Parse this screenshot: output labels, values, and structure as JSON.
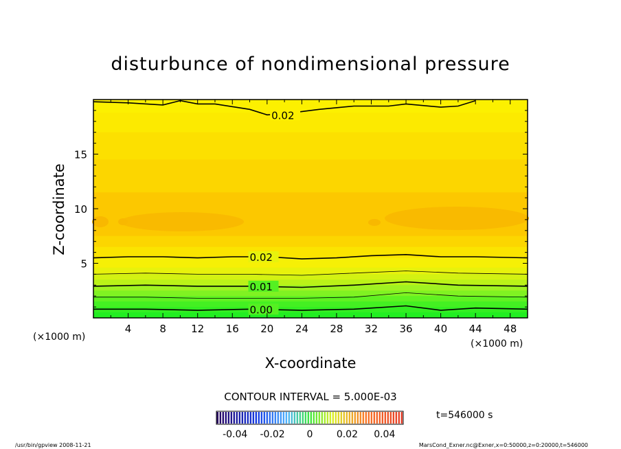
{
  "chart_data": {
    "type": "heatmap",
    "title": "disturbunce of nondimensional pressure",
    "xlabel": "X-coordinate",
    "ylabel": "Z-coordinate",
    "x_unit": "(×1000 m)",
    "y_unit": "(×1000 m)",
    "xlim": [
      0,
      50
    ],
    "ylim": [
      0,
      20
    ],
    "x_ticks": [
      4,
      8,
      12,
      16,
      20,
      24,
      28,
      32,
      36,
      40,
      44,
      48
    ],
    "y_ticks": [
      5,
      10,
      15
    ],
    "contour_interval_text": "CONTOUR INTERVAL = 5.000E-03",
    "time_text": "t=546000 s",
    "colorbar": {
      "range": [
        -0.05,
        0.05
      ],
      "tick_values": [
        -0.04,
        -0.02,
        0,
        0.02,
        0.04
      ],
      "tick_labels": [
        "-0.04",
        "-0.02",
        "0",
        "0.02",
        "0.04"
      ]
    },
    "contours": [
      {
        "label": "0.02",
        "label_x": 20.5,
        "points": [
          [
            0,
            19.8
          ],
          [
            4,
            19.7
          ],
          [
            8,
            19.5
          ],
          [
            10,
            19.9
          ],
          [
            12,
            19.6
          ],
          [
            14,
            19.6
          ],
          [
            18,
            19.1
          ],
          [
            20,
            18.6
          ],
          [
            22,
            18.7
          ],
          [
            26,
            19.1
          ],
          [
            30,
            19.4
          ],
          [
            34,
            19.4
          ],
          [
            36,
            19.6
          ],
          [
            40,
            19.3
          ],
          [
            42,
            19.4
          ],
          [
            44,
            19.9
          ]
        ]
      },
      {
        "label": "0.02",
        "label_x": 18,
        "points": [
          [
            0,
            5.5
          ],
          [
            4,
            5.6
          ],
          [
            8,
            5.6
          ],
          [
            12,
            5.5
          ],
          [
            16,
            5.6
          ],
          [
            20,
            5.6
          ],
          [
            24,
            5.4
          ],
          [
            28,
            5.5
          ],
          [
            32,
            5.7
          ],
          [
            36,
            5.8
          ],
          [
            40,
            5.6
          ],
          [
            44,
            5.6
          ],
          [
            50,
            5.5
          ]
        ]
      },
      {
        "label": "",
        "points": [
          [
            0,
            4.0
          ],
          [
            6,
            4.1
          ],
          [
            12,
            4.0
          ],
          [
            18,
            4.0
          ],
          [
            24,
            3.9
          ],
          [
            30,
            4.1
          ],
          [
            36,
            4.3
          ],
          [
            42,
            4.1
          ],
          [
            50,
            4.0
          ]
        ]
      },
      {
        "label": "0.01",
        "label_x": 18,
        "points": [
          [
            0,
            2.9
          ],
          [
            6,
            3.0
          ],
          [
            12,
            2.9
          ],
          [
            18,
            2.9
          ],
          [
            24,
            2.8
          ],
          [
            30,
            3.0
          ],
          [
            36,
            3.3
          ],
          [
            42,
            3.0
          ],
          [
            50,
            2.9
          ]
        ]
      },
      {
        "label": "",
        "points": [
          [
            0,
            1.9
          ],
          [
            6,
            1.9
          ],
          [
            12,
            1.8
          ],
          [
            18,
            1.8
          ],
          [
            24,
            1.8
          ],
          [
            30,
            1.9
          ],
          [
            36,
            2.3
          ],
          [
            42,
            2.0
          ],
          [
            50,
            1.9
          ]
        ]
      },
      {
        "label": "0.00",
        "label_x": 18,
        "points": [
          [
            0,
            0.8
          ],
          [
            6,
            0.8
          ],
          [
            12,
            0.7
          ],
          [
            18,
            0.8
          ],
          [
            24,
            0.7
          ],
          [
            30,
            0.8
          ],
          [
            36,
            1.1
          ],
          [
            40,
            0.7
          ],
          [
            44,
            0.9
          ],
          [
            50,
            0.8
          ]
        ]
      }
    ],
    "color_bands": [
      {
        "z_max": 0.5,
        "color": "#22ee22"
      },
      {
        "z_max": 1.0,
        "color": "#33ee22"
      },
      {
        "z_max": 1.5,
        "color": "#44f022"
      },
      {
        "z_max": 2.0,
        "color": "#60f222"
      },
      {
        "z_max": 2.5,
        "color": "#80f222"
      },
      {
        "z_max": 3.0,
        "color": "#9ff222"
      },
      {
        "z_max": 3.5,
        "color": "#bbf218"
      },
      {
        "z_max": 4.0,
        "color": "#d3f212"
      },
      {
        "z_max": 4.6,
        "color": "#e8f20c"
      },
      {
        "z_max": 5.5,
        "color": "#f6f006"
      },
      {
        "z_max": 6.5,
        "color": "#fbe400"
      },
      {
        "z_max": 7.5,
        "color": "#fcd600"
      },
      {
        "z_max": 11.5,
        "color": "#fcc800"
      },
      {
        "z_max": 14.5,
        "color": "#fcd600"
      },
      {
        "z_max": 17.0,
        "color": "#fce000"
      },
      {
        "z_max": 18.8,
        "color": "#fcea00"
      },
      {
        "z_max": 20.0,
        "color": "#fcf000"
      }
    ]
  },
  "footer": {
    "left": "/usr/bin/gpview   2008-11-21",
    "right": "MarsCond_Exner.nc@Exner,x=0:50000,z=0:20000,t=546000"
  }
}
